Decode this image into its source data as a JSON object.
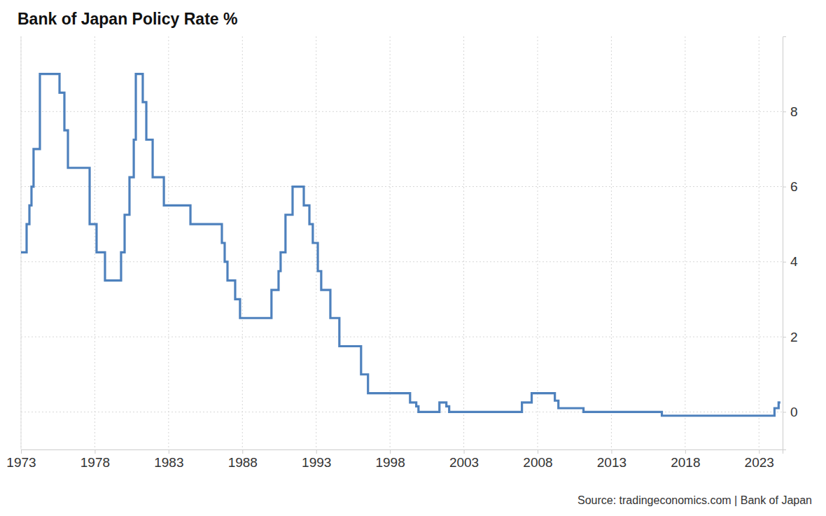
{
  "chart_data": {
    "type": "line",
    "title": "Bank of Japan Policy Rate %",
    "source": "Source: tradingeconomics.com | Bank of Japan",
    "x": [
      1973.0,
      1973.38,
      1973.57,
      1973.71,
      1973.85,
      1974.28,
      1975.61,
      1975.94,
      1976.18,
      1977.65,
      1978.12,
      1978.69,
      1979.78,
      1980.02,
      1980.35,
      1980.64,
      1980.78,
      1981.25,
      1981.49,
      1981.92,
      1982.68,
      1984.48,
      1986.61,
      1986.8,
      1986.99,
      1987.51,
      1987.84,
      1989.97,
      1990.45,
      1990.59,
      1990.92,
      1991.4,
      1992.16,
      1992.54,
      1992.77,
      1993.11,
      1993.34,
      1993.96,
      1994.57,
      1996.04,
      1996.51,
      1999.36,
      1999.78,
      1999.93,
      2001.35,
      2001.82,
      2002.01,
      2006.94,
      2007.6,
      2009.17,
      2009.41,
      2011.11,
      2016.42,
      2024.05,
      2024.33,
      2024.45
    ],
    "values": [
      4.25,
      5,
      5.5,
      6,
      7,
      9,
      8.5,
      7.5,
      6.5,
      5,
      4.25,
      3.5,
      4.25,
      5.25,
      6.25,
      7.25,
      9,
      8.25,
      7.25,
      6.25,
      5.5,
      5,
      4.5,
      4,
      3.5,
      3,
      2.5,
      3.25,
      3.75,
      4.25,
      5.25,
      6,
      5.5,
      5,
      4.5,
      3.75,
      3.25,
      2.5,
      1.75,
      1,
      0.5,
      0.25,
      0.15,
      0,
      0.25,
      0.15,
      0,
      0.25,
      0.5,
      0.3,
      0.1,
      0,
      -0.1,
      0.1,
      0.25,
      0.25
    ],
    "color": "#4e81bd",
    "line_style": "step",
    "xlim": [
      1973,
      2024.6
    ],
    "xticks": [
      1973,
      1978,
      1983,
      1988,
      1993,
      1998,
      2003,
      2008,
      2013,
      2018,
      2023
    ],
    "ylim": [
      -1,
      10
    ],
    "yticks": [
      0,
      2,
      4,
      6,
      8
    ],
    "grid": true
  }
}
